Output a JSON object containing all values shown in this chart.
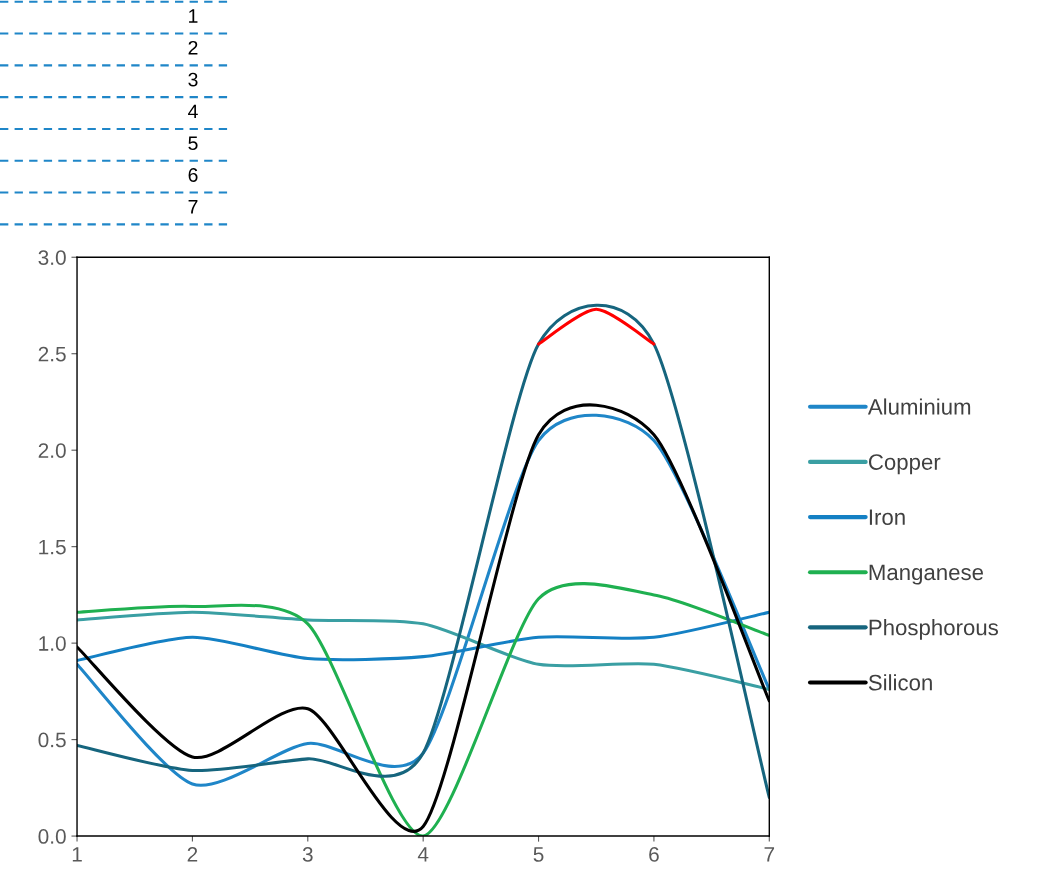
{
  "chart_data": {
    "type": "line",
    "x": [
      1,
      2,
      3,
      4,
      5,
      6,
      7
    ],
    "series": [
      {
        "name": "Aluminium",
        "color": "#1f86c8",
        "values": [
          0.89,
          0.27,
          0.48,
          0.43,
          2.05,
          2.05,
          0.76
        ]
      },
      {
        "name": "Copper",
        "color": "#3a9fa3",
        "values": [
          1.12,
          1.16,
          1.12,
          1.1,
          0.89,
          0.89,
          0.76
        ]
      },
      {
        "name": "Iron",
        "color": "#1480c4",
        "values": [
          0.91,
          1.03,
          0.92,
          0.93,
          1.03,
          1.03,
          1.16
        ]
      },
      {
        "name": "Manganese",
        "color": "#1fb050",
        "values": [
          1.16,
          1.19,
          1.1,
          0.0,
          1.23,
          1.25,
          1.04
        ]
      },
      {
        "name": "Phosphorous",
        "color": "#16657e",
        "values": [
          0.47,
          0.34,
          0.4,
          0.43,
          2.55,
          2.55,
          0.2
        ]
      },
      {
        "color": "#ff0000",
        "x": [
          5,
          5.5,
          6
        ],
        "values": [
          2.55,
          2.73,
          2.55
        ]
      },
      {
        "name": "Silicon",
        "color": "#000000",
        "values": [
          0.98,
          0.41,
          0.66,
          0.05,
          2.08,
          2.08,
          0.7
        ]
      }
    ],
    "xlim": [
      1,
      7
    ],
    "xticks": [
      1,
      2,
      3,
      4,
      5,
      6,
      7
    ],
    "ylim": [
      0,
      3
    ],
    "yticks": [
      {
        "value": 0,
        "label": "0.0"
      },
      {
        "value": 0.5,
        "label": "0.5"
      },
      {
        "value": 1,
        "label": "1.0"
      },
      {
        "value": 1.5,
        "label": "1.5"
      },
      {
        "value": 2,
        "label": "2.0"
      },
      {
        "value": 2.5,
        "label": "2.5"
      },
      {
        "value": 3,
        "label": "3.0"
      }
    ],
    "annotations": [
      "1",
      "2",
      "3",
      "4",
      "5",
      "6",
      "7"
    ],
    "legend": "right",
    "grid": false,
    "marker": "none",
    "line_style": "solid"
  }
}
